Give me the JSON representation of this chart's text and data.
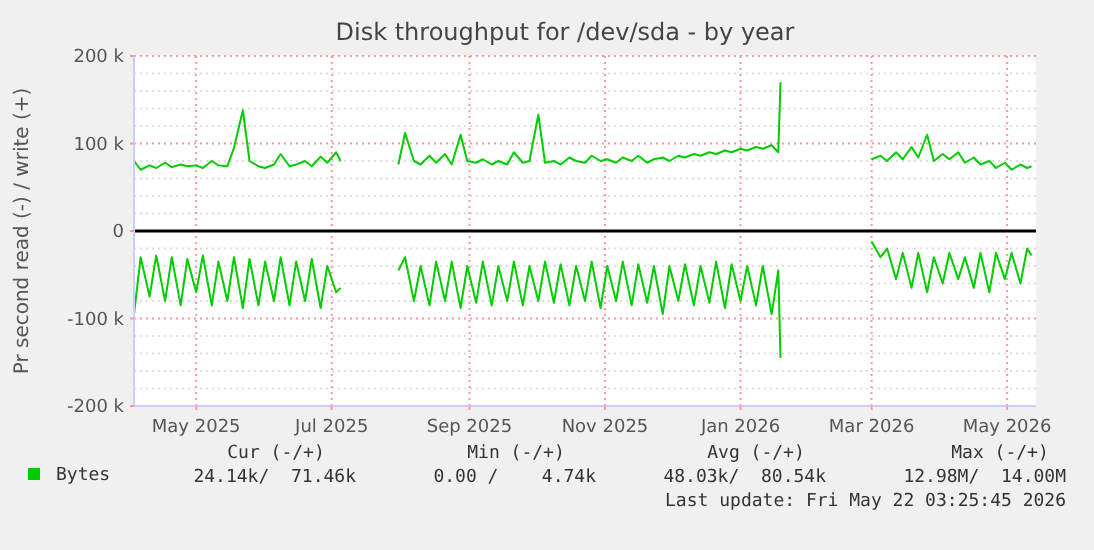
{
  "chart_data": {
    "type": "line",
    "title": "Disk throughput for /dev/sda - by year",
    "ylabel": "Pr second read (-) / write (+)",
    "x": [
      "2025-04-03",
      "2025-04-06",
      "2025-04-10",
      "2025-04-13",
      "2025-04-17",
      "2025-04-20",
      "2025-04-24",
      "2025-04-27",
      "2025-05-01",
      "2025-05-04",
      "2025-05-08",
      "2025-05-11",
      "2025-05-15",
      "2025-05-18",
      "2025-05-22",
      "2025-05-25",
      "2025-05-29",
      "2025-06-01",
      "2025-06-05",
      "2025-06-08",
      "2025-06-12",
      "2025-06-15",
      "2025-06-19",
      "2025-06-22",
      "2025-06-26",
      "2025-06-29",
      "2025-07-03",
      "2025-07-05",
      "2025-07-18",
      "2025-07-31",
      "2025-08-03",
      "2025-08-07",
      "2025-08-10",
      "2025-08-14",
      "2025-08-17",
      "2025-08-21",
      "2025-08-24",
      "2025-08-28",
      "2025-08-31",
      "2025-09-04",
      "2025-09-07",
      "2025-09-11",
      "2025-09-14",
      "2025-09-18",
      "2025-09-21",
      "2025-09-25",
      "2025-09-28",
      "2025-10-02",
      "2025-10-05",
      "2025-10-09",
      "2025-10-12",
      "2025-10-16",
      "2025-10-19",
      "2025-10-23",
      "2025-10-26",
      "2025-10-30",
      "2025-11-02",
      "2025-11-06",
      "2025-11-09",
      "2025-11-13",
      "2025-11-16",
      "2025-11-20",
      "2025-11-23",
      "2025-11-27",
      "2025-11-30",
      "2025-12-04",
      "2025-12-07",
      "2025-12-11",
      "2025-12-14",
      "2025-12-18",
      "2025-12-21",
      "2025-12-25",
      "2025-12-28",
      "2026-01-01",
      "2026-01-04",
      "2026-01-08",
      "2026-01-11",
      "2026-01-15",
      "2026-01-18",
      "2026-01-19",
      "2026-02-10",
      "2026-03-01",
      "2026-03-05",
      "2026-03-08",
      "2026-03-12",
      "2026-03-15",
      "2026-03-19",
      "2026-03-22",
      "2026-03-26",
      "2026-03-29",
      "2026-04-02",
      "2026-04-05",
      "2026-04-09",
      "2026-04-12",
      "2026-04-16",
      "2026-04-19",
      "2026-04-23",
      "2026-04-26",
      "2026-04-30",
      "2026-05-03",
      "2026-05-07",
      "2026-05-10",
      "2026-05-12"
    ],
    "series": [
      {
        "name": "Bytes",
        "color": "#00cc00",
        "values": [
          80,
          70,
          75,
          72,
          78,
          73,
          76,
          74,
          75,
          72,
          80,
          75,
          74,
          95,
          138,
          80,
          74,
          72,
          76,
          88,
          74,
          76,
          80,
          74,
          85,
          78,
          90,
          80,
          null,
          76,
          112,
          80,
          76,
          86,
          78,
          88,
          76,
          110,
          80,
          78,
          82,
          76,
          80,
          76,
          90,
          78,
          80,
          133,
          78,
          80,
          76,
          84,
          80,
          78,
          86,
          80,
          82,
          78,
          84,
          80,
          86,
          78,
          82,
          84,
          80,
          86,
          84,
          88,
          86,
          90,
          88,
          92,
          90,
          94,
          92,
          96,
          94,
          98,
          90,
          170,
          null,
          82,
          86,
          80,
          90,
          82,
          96,
          84,
          110,
          80,
          88,
          82,
          90,
          78,
          84,
          76,
          80,
          72,
          78,
          70,
          76,
          72,
          74
        ]
      },
      {
        "color": "#00cc00",
        "values": [
          -95,
          -30,
          -75,
          -28,
          -80,
          -30,
          -85,
          -32,
          -70,
          -28,
          -85,
          -35,
          -80,
          -30,
          -88,
          -32,
          -85,
          -35,
          -80,
          -30,
          -85,
          -35,
          -80,
          -32,
          -88,
          -40,
          -70,
          -65,
          null,
          -45,
          -30,
          -80,
          -40,
          -85,
          -35,
          -80,
          -35,
          -88,
          -40,
          -82,
          -35,
          -85,
          -40,
          -80,
          -35,
          -85,
          -40,
          -80,
          -35,
          -82,
          -38,
          -85,
          -40,
          -80,
          -35,
          -88,
          -40,
          -80,
          -35,
          -85,
          -38,
          -82,
          -40,
          -95,
          -40,
          -80,
          -38,
          -85,
          -40,
          -82,
          -35,
          -88,
          -38,
          -80,
          -40,
          -85,
          -40,
          -95,
          -45,
          -145,
          null,
          -12,
          -30,
          -20,
          -55,
          -25,
          -65,
          -25,
          -70,
          -30,
          -60,
          -25,
          -55,
          -30,
          -65,
          -25,
          -70,
          -25,
          -55,
          -25,
          -60,
          -20,
          -28
        ]
      }
    ],
    "xlim": [
      "2025-04-03",
      "2026-05-14"
    ],
    "xticks": [
      {
        "value": "2025-05-01",
        "label": "May 2025"
      },
      {
        "value": "2025-07-01",
        "label": "Jul 2025"
      },
      {
        "value": "2025-09-01",
        "label": "Sep 2025"
      },
      {
        "value": "2025-11-01",
        "label": "Nov 2025"
      },
      {
        "value": "2026-01-01",
        "label": "Jan 2026"
      },
      {
        "value": "2026-03-01",
        "label": "Mar 2026"
      },
      {
        "value": "2026-05-01",
        "label": "May 2026"
      }
    ],
    "ylim": [
      -200,
      200
    ],
    "yticks": [
      {
        "value": -200,
        "label": "-200 k"
      },
      {
        "value": -100,
        "label": "-100 k"
      },
      0,
      {
        "value": 100,
        "label": "100 k"
      },
      {
        "value": 200,
        "label": "200 k"
      }
    ],
    "ref_lines": [
      {
        "axis": "y",
        "value": 0,
        "color": "#000000"
      }
    ],
    "grid": true,
    "legend": "bottom left",
    "annotations": [
      "Cur (-/+)",
      "Min (-/+)",
      "Avg (-/+)",
      "Max (-/+)",
      "24.14k/  71.46k",
      "0.00 /    4.74k",
      "48.03k/  80.54k",
      "12.98M/  14.00M",
      "Last update: Fri May 22 03:25:45 2026"
    ]
  }
}
